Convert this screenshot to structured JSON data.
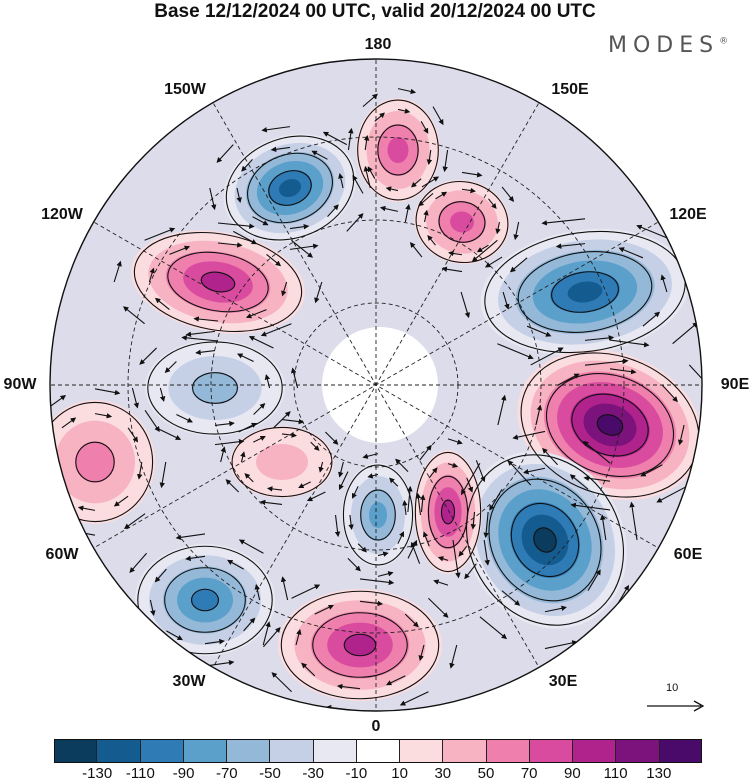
{
  "title": "Base 12/12/2024 00 UTC, valid 20/12/2024 00 UTC",
  "brand": "MODES",
  "brand_mark": "®",
  "longitude_labels": [
    "180",
    "150E",
    "120E",
    "90E",
    "60E",
    "30E",
    "0",
    "30W",
    "60W",
    "90W",
    "120W",
    "150W"
  ],
  "colorbar": {
    "ticks": [
      "-130",
      "-110",
      "-90",
      "-70",
      "-50",
      "-30",
      "-10",
      "10",
      "30",
      "50",
      "70",
      "90",
      "110",
      "130"
    ],
    "colors": [
      "#0b3c5d",
      "#145b8f",
      "#2e7bb6",
      "#5b9fcb",
      "#93b8d8",
      "#c5d0e6",
      "#e8e8f2",
      "#ffffff",
      "#fbdcdf",
      "#f7b3c2",
      "#ef7fac",
      "#d94b9e",
      "#b0228c",
      "#7c127c",
      "#4a0a6a"
    ]
  },
  "reference_vector": {
    "label": "10"
  },
  "anomaly_centers": [
    {
      "name": "center-150w",
      "sign": "negative",
      "value": -110
    },
    {
      "name": "center-180-north",
      "sign": "positive",
      "value": 80
    },
    {
      "name": "center-150e",
      "sign": "positive",
      "value": 70
    },
    {
      "name": "center-120w",
      "sign": "positive",
      "value": 100
    },
    {
      "name": "center-120e",
      "sign": "negative",
      "value": -110
    },
    {
      "name": "center-90e",
      "sign": "positive",
      "value": 135
    },
    {
      "name": "center-90w",
      "sign": "negative",
      "value": -50
    },
    {
      "name": "center-75w",
      "sign": "positive",
      "value": 50
    },
    {
      "name": "center-60e",
      "sign": "negative",
      "value": -130
    },
    {
      "name": "center-30e-inner",
      "sign": "positive",
      "value": 100
    },
    {
      "name": "center-0-inner",
      "sign": "negative",
      "value": -70
    },
    {
      "name": "center-0",
      "sign": "positive",
      "value": 100
    },
    {
      "name": "center-45w",
      "sign": "negative",
      "value": -90
    },
    {
      "name": "center-100w-low",
      "sign": "positive",
      "value": 40
    }
  ]
}
